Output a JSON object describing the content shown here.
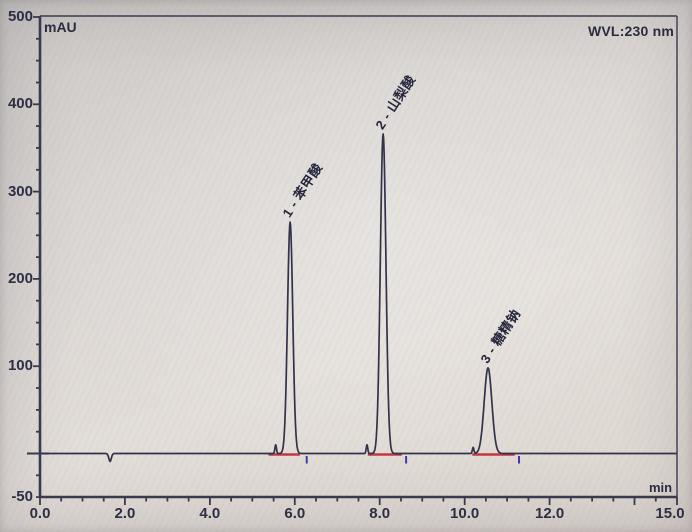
{
  "chart_data": {
    "type": "line",
    "subtype": "hplc-chromatogram",
    "title": "",
    "annotation": "WVL:230 nm",
    "xlabel": "min",
    "ylabel": "mAU",
    "x_range": [
      0.0,
      15.0
    ],
    "y_range": [
      -50,
      500
    ],
    "x_tick_values": [
      0,
      2,
      4,
      6,
      8,
      10,
      12,
      15
    ],
    "x_tick_labels": [
      "0.0",
      "2.0",
      "4.0",
      "6.0",
      "8.0",
      "10.0",
      "12.0",
      "15.0"
    ],
    "x_minor_step": 0.5,
    "y_tick_values": [
      500,
      400,
      300,
      200,
      100,
      -50
    ],
    "y_tick_labels": [
      "500",
      "400",
      "300",
      "200",
      "100",
      "-50"
    ],
    "y_minor_step": 25,
    "grid": false,
    "legend": "none",
    "peaks": [
      {
        "id": 1,
        "label": "1 - 苯甲酸",
        "rt_min": 5.89,
        "height_mau": 265,
        "sigma_min": 0.062,
        "integration_start_min": 5.38,
        "integration_end_min": 6.12
      },
      {
        "id": 2,
        "label": "2 - 山梨酸",
        "rt_min": 8.08,
        "height_mau": 366,
        "sigma_min": 0.066,
        "integration_start_min": 7.72,
        "integration_end_min": 8.52
      },
      {
        "id": 3,
        "label": "3 - 糖精钠",
        "rt_min": 10.55,
        "height_mau": 98,
        "sigma_min": 0.09,
        "integration_start_min": 10.18,
        "integration_end_min": 11.18
      }
    ],
    "minor_features": {
      "pre_peak_blips": [
        {
          "rt_min": 5.55,
          "height_mau": 10
        },
        {
          "rt_min": 7.7,
          "height_mau": 10
        },
        {
          "rt_min": 10.2,
          "height_mau": 7
        }
      ],
      "negative_dip": {
        "rt_min": 1.65,
        "depth_mau": -9
      },
      "event_marks_min": [
        6.28,
        8.62,
        11.28
      ]
    },
    "colors": {
      "trace": "#32324a",
      "integration_baseline": "#c4373c",
      "event_mark": "#3c3cae",
      "axis": "#3a3a4e",
      "text": "#2c2c40"
    }
  }
}
